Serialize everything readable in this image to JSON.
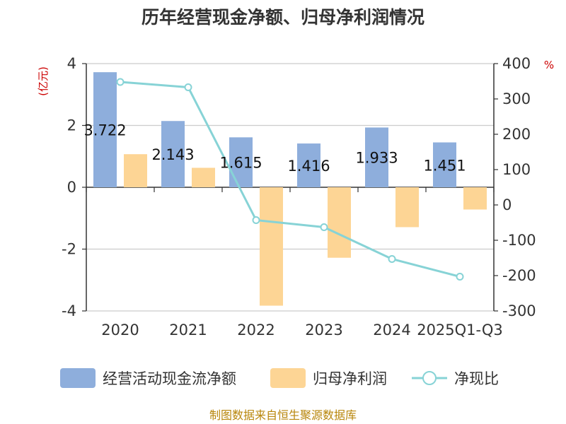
{
  "chart_data": {
    "type": "bar",
    "title": "历年经营现金净额、归母净利润情况",
    "categories": [
      "2020",
      "2021",
      "2022",
      "2023",
      "2024",
      "2025Q1-Q3"
    ],
    "y_left": {
      "unit": "(亿元)",
      "ylim": [
        -4,
        4
      ],
      "ticks": [
        4,
        2,
        0,
        -2,
        -4
      ]
    },
    "y_right": {
      "unit": "%",
      "ylim": [
        -300,
        400
      ],
      "ticks": [
        400,
        300,
        200,
        100,
        0,
        -100,
        -200,
        -300
      ]
    },
    "series": [
      {
        "name": "经营活动现金流净额",
        "type": "bar",
        "axis": "left",
        "color": "#8eaedc",
        "values": [
          3.722,
          2.143,
          1.615,
          1.416,
          1.933,
          1.451
        ],
        "labels": [
          "3.722",
          "2.143",
          "1.615",
          "1.416",
          "1.933",
          "1.451"
        ]
      },
      {
        "name": "归母净利润",
        "type": "bar",
        "axis": "left",
        "color": "#fdd595",
        "values": [
          1.07,
          0.63,
          -3.83,
          -2.28,
          -1.29,
          -0.72
        ]
      },
      {
        "name": "净现比",
        "type": "line",
        "axis": "right",
        "color": "#87d3d6",
        "values": [
          348,
          333,
          -43,
          -63,
          -153,
          -203
        ]
      }
    ],
    "grid": true,
    "legend_position": "bottom"
  },
  "source": "制图数据来自恒生聚源数据库"
}
